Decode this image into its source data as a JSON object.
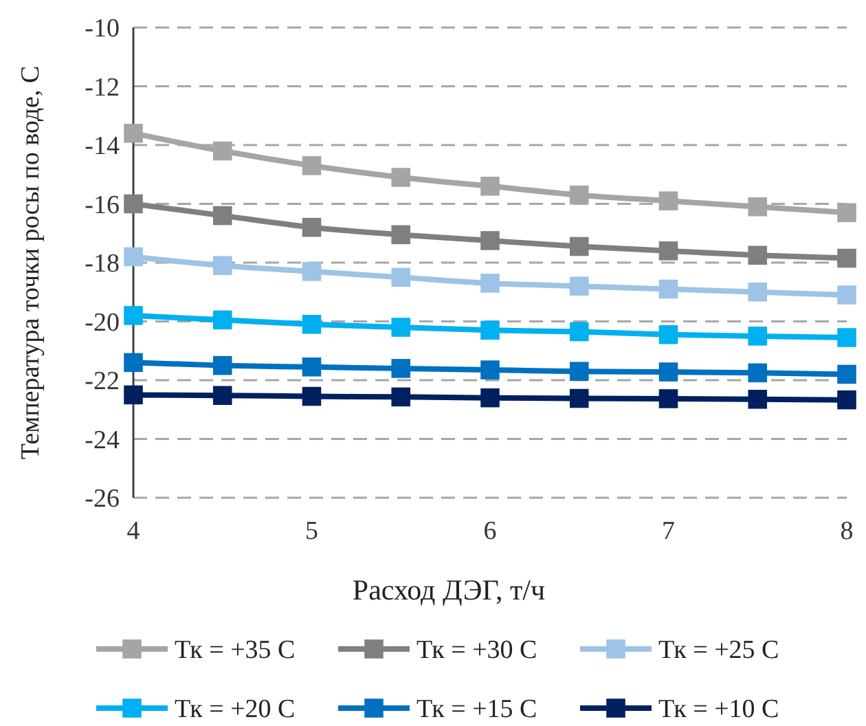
{
  "chart_data": {
    "type": "line",
    "xlabel": "Расход ДЭГ, т/ч",
    "ylabel": "Температура точки росы по воде, С",
    "x": [
      4,
      4.5,
      5,
      5.5,
      6,
      6.5,
      7,
      7.5,
      8
    ],
    "xlim": [
      4,
      8
    ],
    "xticks": [
      4,
      5,
      6,
      7,
      8
    ],
    "ylim": [
      -26,
      -10
    ],
    "yticks": [
      -26,
      -24,
      -22,
      -20,
      -18,
      -16,
      -14,
      -12,
      -10
    ],
    "grid": "y",
    "legend": "bottom",
    "marker": "square",
    "line_style": "solid",
    "series": [
      {
        "name": "Тк = +35 С",
        "color": "#a5a5a5",
        "values": [
          -13.6,
          -14.2,
          -14.7,
          -15.1,
          -15.4,
          -15.7,
          -15.9,
          -16.1,
          -16.3
        ]
      },
      {
        "name": "Тк = +30 С",
        "color": "#7f7f7f",
        "values": [
          -16.0,
          -16.4,
          -16.8,
          -17.05,
          -17.25,
          -17.45,
          -17.6,
          -17.75,
          -17.85
        ]
      },
      {
        "name": "Тк = +25 С",
        "color": "#9dc3e6",
        "values": [
          -17.8,
          -18.1,
          -18.3,
          -18.5,
          -18.7,
          -18.8,
          -18.9,
          -19.0,
          -19.1
        ]
      },
      {
        "name": "Тк = +20 С",
        "color": "#00b0f0",
        "values": [
          -19.8,
          -19.95,
          -20.1,
          -20.2,
          -20.3,
          -20.35,
          -20.45,
          -20.5,
          -20.55
        ]
      },
      {
        "name": "Тк = +15 С",
        "color": "#0070c0",
        "values": [
          -21.4,
          -21.5,
          -21.55,
          -21.6,
          -21.65,
          -21.7,
          -21.72,
          -21.75,
          -21.8
        ]
      },
      {
        "name": "Тк = +10 С",
        "color": "#002060",
        "values": [
          -22.5,
          -22.52,
          -22.55,
          -22.57,
          -22.6,
          -22.62,
          -22.63,
          -22.65,
          -22.67
        ]
      }
    ]
  }
}
